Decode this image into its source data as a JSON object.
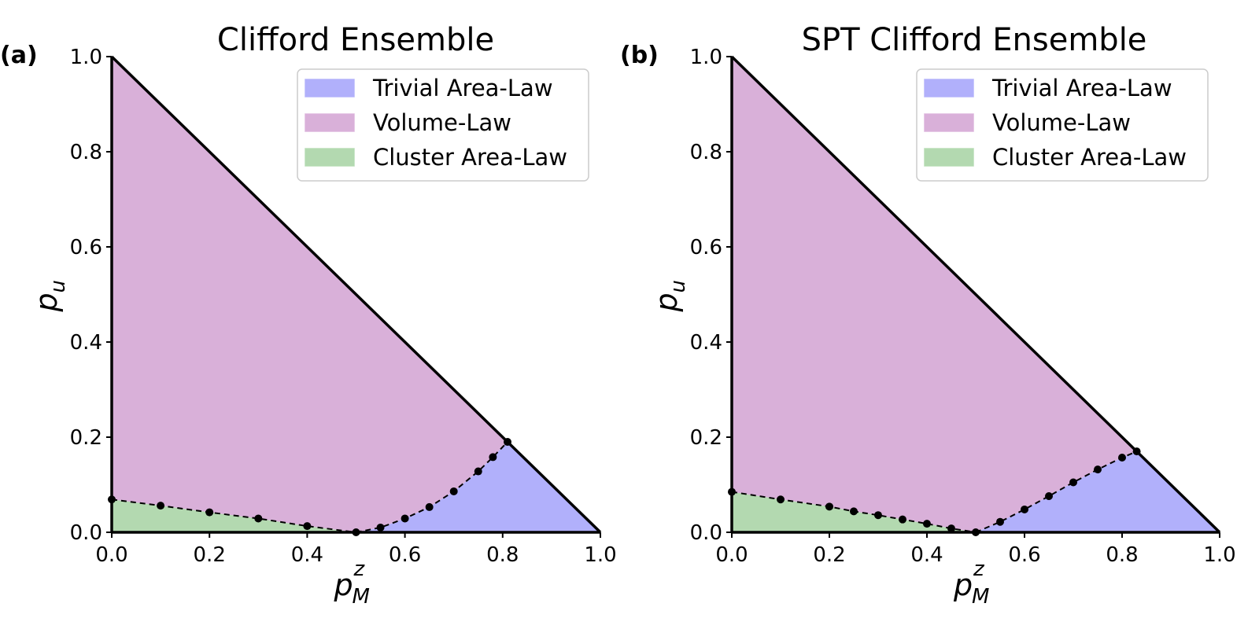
{
  "chart_data": [
    {
      "type": "area",
      "panel_label": "(a)",
      "title": "Clifford Ensemble",
      "xlabel": {
        "base": "p",
        "sub": "M",
        "sup": "z"
      },
      "ylabel": {
        "base": "p",
        "sub": "u"
      },
      "xlim": [
        0,
        1
      ],
      "ylim": [
        0,
        1
      ],
      "xticks": [
        "0.0",
        "0.2",
        "0.4",
        "0.6",
        "0.8",
        "1.0"
      ],
      "yticks": [
        "0.0",
        "0.2",
        "0.4",
        "0.6",
        "0.8",
        "1.0"
      ],
      "legend": [
        {
          "name": "Trivial Area-Law",
          "color": "#b1b0fb"
        },
        {
          "name": "Volume-Law",
          "color": "#d9b0d9"
        },
        {
          "name": "Cluster Area-Law",
          "color": "#b3d9b0"
        }
      ],
      "legend_position": "top-right",
      "boundary_points": {
        "cluster": {
          "x": [
            0.0,
            0.1,
            0.2,
            0.3,
            0.4,
            0.5
          ],
          "y": [
            0.069,
            0.056,
            0.042,
            0.029,
            0.013,
            0.0
          ]
        },
        "trivial": {
          "x": [
            0.5,
            0.55,
            0.6,
            0.65,
            0.7,
            0.75,
            0.78,
            0.81
          ],
          "y": [
            0.0,
            0.01,
            0.029,
            0.053,
            0.086,
            0.128,
            0.158,
            0.19
          ]
        }
      }
    },
    {
      "type": "area",
      "panel_label": "(b)",
      "title": "SPT Clifford Ensemble",
      "xlabel": {
        "base": "p",
        "sub": "M",
        "sup": "z"
      },
      "ylabel": {
        "base": "p",
        "sub": "u"
      },
      "xlim": [
        0,
        1
      ],
      "ylim": [
        0,
        1
      ],
      "xticks": [
        "0.0",
        "0.2",
        "0.4",
        "0.6",
        "0.8",
        "1.0"
      ],
      "yticks": [
        "0.0",
        "0.2",
        "0.4",
        "0.6",
        "0.8",
        "1.0"
      ],
      "legend": [
        {
          "name": "Trivial Area-Law",
          "color": "#b1b0fb"
        },
        {
          "name": "Volume-Law",
          "color": "#d9b0d9"
        },
        {
          "name": "Cluster Area-Law",
          "color": "#b3d9b0"
        }
      ],
      "legend_position": "top-right",
      "boundary_points": {
        "cluster": {
          "x": [
            0.0,
            0.1,
            0.2,
            0.25,
            0.3,
            0.35,
            0.4,
            0.45,
            0.5
          ],
          "y": [
            0.085,
            0.069,
            0.054,
            0.044,
            0.036,
            0.027,
            0.018,
            0.008,
            0.0
          ]
        },
        "trivial": {
          "x": [
            0.5,
            0.55,
            0.6,
            0.65,
            0.7,
            0.75,
            0.8,
            0.83
          ],
          "y": [
            0.0,
            0.022,
            0.048,
            0.076,
            0.105,
            0.132,
            0.157,
            0.17
          ]
        }
      }
    }
  ]
}
